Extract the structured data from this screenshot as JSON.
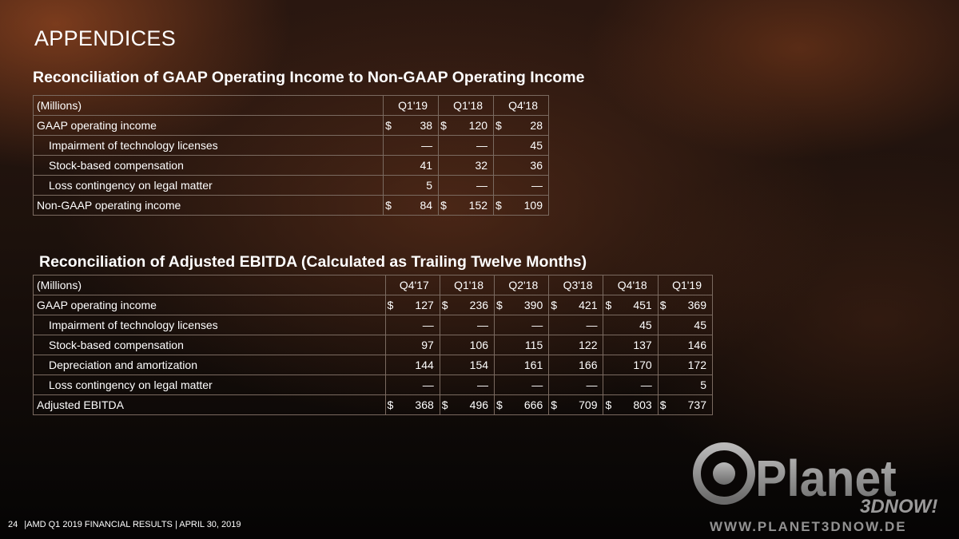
{
  "title": "APPENDICES",
  "section1": {
    "title": "Reconciliation of GAAP Operating Income to Non-GAAP Operating Income",
    "units_label": "(Millions)",
    "columns": [
      "Q1'19",
      "Q1'18",
      "Q4'18"
    ],
    "rows": [
      {
        "label": "GAAP operating income",
        "cur": "$",
        "values": [
          "38",
          "120",
          "28"
        ]
      },
      {
        "label": "Impairment of technology licenses",
        "values": [
          "—",
          "—",
          "45"
        ]
      },
      {
        "label": "Stock-based compensation",
        "values": [
          "41",
          "32",
          "36"
        ]
      },
      {
        "label": "Loss contingency on legal matter",
        "values": [
          "5",
          "—",
          "—"
        ]
      },
      {
        "label": "Non-GAAP operating income",
        "cur": "$",
        "values": [
          "84",
          "152",
          "109"
        ]
      }
    ]
  },
  "section2": {
    "title": "Reconciliation of Adjusted EBITDA (Calculated as Trailing Twelve Months)",
    "units_label": "(Millions)",
    "columns": [
      "Q4'17",
      "Q1'18",
      "Q2'18",
      "Q3'18",
      "Q4'18",
      "Q1'19"
    ],
    "rows": [
      {
        "label": "GAAP operating income",
        "cur": "$",
        "values": [
          "127",
          "236",
          "390",
          "421",
          "451",
          "369"
        ]
      },
      {
        "label": "Impairment of technology licenses",
        "values": [
          "—",
          "—",
          "—",
          "—",
          "45",
          "45"
        ]
      },
      {
        "label": "Stock-based compensation",
        "values": [
          "97",
          "106",
          "115",
          "122",
          "137",
          "146"
        ]
      },
      {
        "label": "Depreciation and amortization",
        "values": [
          "144",
          "154",
          "161",
          "166",
          "170",
          "172"
        ]
      },
      {
        "label": "Loss contingency on legal matter",
        "values": [
          "—",
          "—",
          "—",
          "—",
          "—",
          "5"
        ]
      },
      {
        "label": "Adjusted EBITDA",
        "cur": "$",
        "values": [
          "368",
          "496",
          "666",
          "709",
          "803",
          "737"
        ]
      }
    ]
  },
  "footer": {
    "page_number": "24",
    "text": "|AMD Q1 2019 FINANCIAL RESULTS |  APRIL 30, 2019"
  },
  "watermark": {
    "name": "Planet",
    "sub": "3DNOW!",
    "url": "WWW.PLANET3DNOW.DE"
  }
}
